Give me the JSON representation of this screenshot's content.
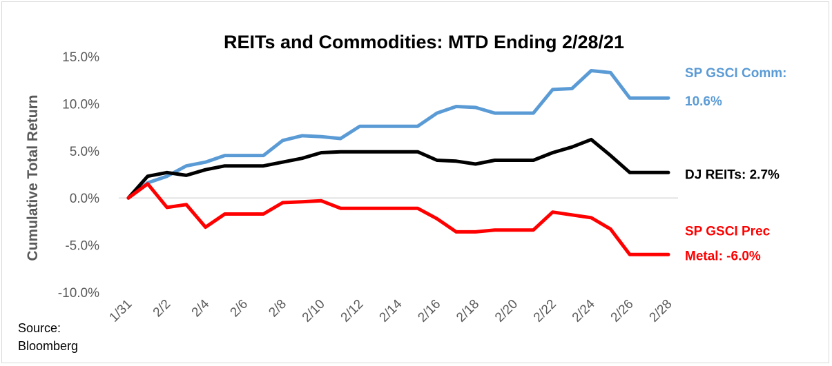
{
  "chart_data": {
    "type": "line",
    "title": "REITs and Commodities: MTD Ending 2/28/21",
    "ylabel": "Cumulative Total Return",
    "ylim": [
      -10,
      15
    ],
    "yticks": [
      -10,
      -5,
      0,
      5,
      10,
      15
    ],
    "ytick_labels": [
      "-10.0%",
      "-5.0%",
      "0.0%",
      "5.0%",
      "10.0%",
      "15.0%"
    ],
    "x": [
      "1/31",
      "2/1",
      "2/2",
      "2/3",
      "2/4",
      "2/5",
      "2/6",
      "2/7",
      "2/8",
      "2/9",
      "2/10",
      "2/11",
      "2/12",
      "2/13",
      "2/14",
      "2/15",
      "2/16",
      "2/17",
      "2/18",
      "2/19",
      "2/20",
      "2/21",
      "2/22",
      "2/23",
      "2/24",
      "2/25",
      "2/26",
      "2/27",
      "2/28"
    ],
    "xtick_labels": [
      "1/31",
      "2/2",
      "2/4",
      "2/6",
      "2/8",
      "2/10",
      "2/12",
      "2/14",
      "2/16",
      "2/18",
      "2/20",
      "2/22",
      "2/24",
      "2/26",
      "2/28"
    ],
    "grid": false,
    "series": [
      {
        "name": "SP GSCI Comm",
        "color": "#5b9bd5",
        "values": [
          0,
          1.6,
          2.3,
          3.4,
          3.8,
          4.5,
          4.5,
          4.5,
          6.1,
          6.6,
          6.5,
          6.3,
          7.6,
          7.6,
          7.6,
          7.6,
          9.0,
          9.7,
          9.6,
          9.0,
          9.0,
          9.0,
          11.5,
          11.6,
          13.5,
          13.3,
          10.6,
          10.6,
          10.6
        ],
        "label_lines": [
          "SP GSCI Comm:",
          "10.6%"
        ]
      },
      {
        "name": "DJ REITs",
        "color": "#000000",
        "values": [
          0,
          2.3,
          2.7,
          2.4,
          3.0,
          3.4,
          3.4,
          3.4,
          3.8,
          4.2,
          4.8,
          4.9,
          4.9,
          4.9,
          4.9,
          4.9,
          4.0,
          3.9,
          3.6,
          4.0,
          4.0,
          4.0,
          4.8,
          5.4,
          6.2,
          4.5,
          2.7,
          2.7,
          2.7
        ],
        "label_lines": [
          "DJ REITs: 2.7%"
        ]
      },
      {
        "name": "SP GSCI Prec Metal",
        "color": "#ff0000",
        "values": [
          0,
          1.5,
          -1.0,
          -0.7,
          -3.1,
          -1.7,
          -1.7,
          -1.7,
          -0.5,
          -0.4,
          -0.3,
          -1.1,
          -1.1,
          -1.1,
          -1.1,
          -1.1,
          -2.2,
          -3.6,
          -3.6,
          -3.4,
          -3.4,
          -3.4,
          -1.5,
          -1.8,
          -2.1,
          -3.3,
          -6.0,
          -6.0,
          -6.0
        ],
        "label_lines": [
          "SP GSCI Prec",
          "Metal: -6.0%"
        ]
      }
    ],
    "source_lines": [
      "Source:",
      "Bloomberg"
    ]
  }
}
